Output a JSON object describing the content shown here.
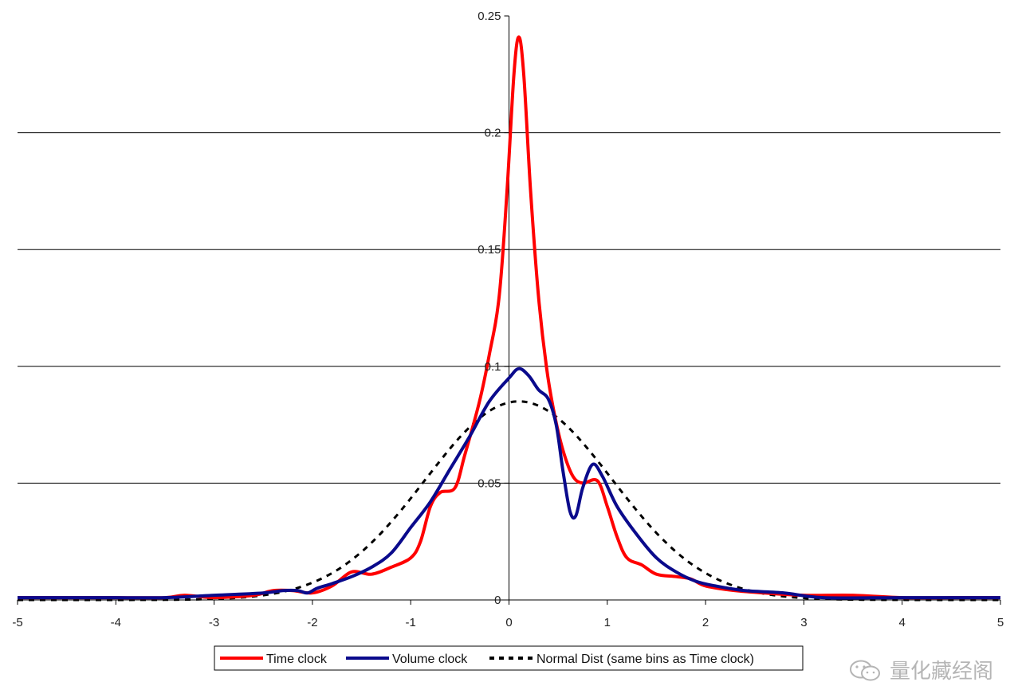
{
  "chart_data": {
    "type": "line",
    "title": "",
    "xlabel": "",
    "ylabel": "",
    "xlim": [
      -5,
      5
    ],
    "ylim": [
      0,
      0.25
    ],
    "x_ticks": [
      -5,
      -4,
      -3,
      -2,
      -1,
      0,
      1,
      2,
      3,
      4,
      5
    ],
    "x_tick_labels": [
      "-5",
      "-4",
      "-3",
      "-2",
      "-1",
      "0",
      "1",
      "2",
      "3",
      "4",
      "5"
    ],
    "y_ticks": [
      0,
      0.05,
      0.1,
      0.15,
      0.2,
      0.25
    ],
    "y_tick_labels": [
      "0",
      "0.05",
      "0.1",
      "0.15",
      "0.2",
      "0.25"
    ],
    "grid": "horizontal",
    "legend_position": "bottom",
    "series": [
      {
        "name": "Time clock",
        "color": "#ff0000",
        "style": "solid",
        "points": [
          [
            -5,
            0.001
          ],
          [
            -4.5,
            0.001
          ],
          [
            -4,
            0.001
          ],
          [
            -3.5,
            0.001
          ],
          [
            -3.3,
            0.002
          ],
          [
            -3,
            0.001
          ],
          [
            -2.6,
            0.002
          ],
          [
            -2.4,
            0.004
          ],
          [
            -2.2,
            0.004
          ],
          [
            -2,
            0.003
          ],
          [
            -1.8,
            0.006
          ],
          [
            -1.6,
            0.012
          ],
          [
            -1.4,
            0.011
          ],
          [
            -1.2,
            0.014
          ],
          [
            -1,
            0.018
          ],
          [
            -0.9,
            0.025
          ],
          [
            -0.8,
            0.04
          ],
          [
            -0.7,
            0.046
          ],
          [
            -0.55,
            0.048
          ],
          [
            -0.45,
            0.062
          ],
          [
            -0.3,
            0.085
          ],
          [
            -0.2,
            0.105
          ],
          [
            -0.1,
            0.13
          ],
          [
            -0.02,
            0.175
          ],
          [
            0.05,
            0.225
          ],
          [
            0.1,
            0.241
          ],
          [
            0.15,
            0.225
          ],
          [
            0.22,
            0.175
          ],
          [
            0.3,
            0.13
          ],
          [
            0.38,
            0.1
          ],
          [
            0.46,
            0.08
          ],
          [
            0.55,
            0.064
          ],
          [
            0.65,
            0.053
          ],
          [
            0.75,
            0.05
          ],
          [
            0.9,
            0.051
          ],
          [
            1,
            0.04
          ],
          [
            1.1,
            0.027
          ],
          [
            1.2,
            0.018
          ],
          [
            1.35,
            0.015
          ],
          [
            1.5,
            0.011
          ],
          [
            1.7,
            0.01
          ],
          [
            1.85,
            0.009
          ],
          [
            2,
            0.006
          ],
          [
            2.3,
            0.004
          ],
          [
            2.6,
            0.003
          ],
          [
            3,
            0.002
          ],
          [
            3.5,
            0.002
          ],
          [
            4,
            0.001
          ],
          [
            4.5,
            0.001
          ],
          [
            5,
            0.001
          ]
        ]
      },
      {
        "name": "Volume clock",
        "color": "#0a0a8c",
        "style": "solid",
        "points": [
          [
            -5,
            0.001
          ],
          [
            -4.5,
            0.001
          ],
          [
            -4,
            0.001
          ],
          [
            -3.5,
            0.001
          ],
          [
            -3,
            0.002
          ],
          [
            -2.5,
            0.003
          ],
          [
            -2.3,
            0.004
          ],
          [
            -2.15,
            0.004
          ],
          [
            -2.05,
            0.003
          ],
          [
            -1.95,
            0.005
          ],
          [
            -1.8,
            0.007
          ],
          [
            -1.6,
            0.01
          ],
          [
            -1.4,
            0.014
          ],
          [
            -1.2,
            0.02
          ],
          [
            -1,
            0.031
          ],
          [
            -0.8,
            0.042
          ],
          [
            -0.6,
            0.056
          ],
          [
            -0.4,
            0.07
          ],
          [
            -0.2,
            0.085
          ],
          [
            0,
            0.095
          ],
          [
            0.1,
            0.099
          ],
          [
            0.2,
            0.096
          ],
          [
            0.3,
            0.09
          ],
          [
            0.4,
            0.086
          ],
          [
            0.48,
            0.075
          ],
          [
            0.55,
            0.055
          ],
          [
            0.62,
            0.038
          ],
          [
            0.68,
            0.036
          ],
          [
            0.75,
            0.048
          ],
          [
            0.85,
            0.058
          ],
          [
            0.95,
            0.053
          ],
          [
            1.1,
            0.04
          ],
          [
            1.3,
            0.028
          ],
          [
            1.5,
            0.018
          ],
          [
            1.7,
            0.012
          ],
          [
            1.9,
            0.008
          ],
          [
            2.1,
            0.006
          ],
          [
            2.4,
            0.004
          ],
          [
            2.8,
            0.003
          ],
          [
            3.2,
            0.001
          ],
          [
            4,
            0.001
          ],
          [
            5,
            0.001
          ]
        ]
      },
      {
        "name": "Normal Dist (same bins as Time clock)",
        "color": "#000000",
        "style": "dashed",
        "mean": 0.1,
        "stdev": 0.95,
        "peak": 0.085
      }
    ]
  },
  "watermark": {
    "icon": "wechat-icon",
    "text": "量化藏经阁"
  }
}
